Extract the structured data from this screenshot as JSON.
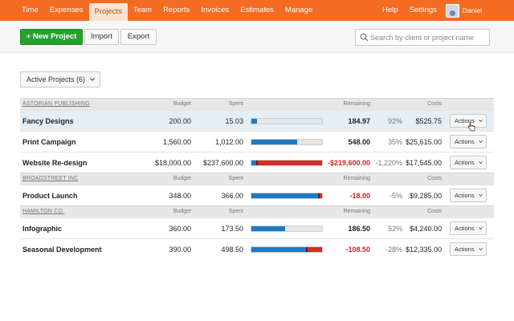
{
  "nav": {
    "items": [
      "Time",
      "Expenses",
      "Projects",
      "Team",
      "Reports",
      "Invoices",
      "Estimates",
      "Manage"
    ],
    "active": "Projects",
    "help": "Help",
    "settings": "Settings",
    "user": "Daniel"
  },
  "toolbar": {
    "new_project": "+ New Project",
    "import": "Import",
    "export": "Export",
    "search_placeholder": "Search by client or project name"
  },
  "filter": {
    "label": "Active Projects (6)"
  },
  "columns": {
    "budget": "Budget",
    "spent": "Spent",
    "remaining": "Remaining",
    "costs": "Costs"
  },
  "actions_label": "Actions",
  "colors": {
    "nav": "#f36c21",
    "new_button": "#26a12d",
    "bar_blue": "#1e7ac4",
    "bar_red": "#d92b25",
    "negative": "#d0201c"
  },
  "groups": [
    {
      "client": "ASTORIAN PUBLISHING",
      "projects": [
        {
          "name": "Fancy Designs",
          "budget": "200.00",
          "spent": "15.03",
          "remaining": "184.97",
          "percent": "92%",
          "costs": "$525.75",
          "progress": 0.075,
          "negative": false,
          "highlighted": true
        },
        {
          "name": "Print Campaign",
          "budget": "1,560.00",
          "spent": "1,012.00",
          "remaining": "548.00",
          "percent": "35%",
          "costs": "$25,615.00",
          "progress": 0.65,
          "negative": false,
          "highlighted": false
        },
        {
          "name": "Website Re-design",
          "budget": "$18,000.00",
          "spent": "$237,600.00",
          "remaining": "-$219,600.00",
          "percent": "-1,220%",
          "costs": "$17,545.00",
          "progress": 13.2,
          "negative": true,
          "highlighted": false
        }
      ]
    },
    {
      "client": "BROADSTREET INC",
      "projects": [
        {
          "name": "Product Launch",
          "budget": "348.00",
          "spent": "366.00",
          "remaining": "-18.00",
          "percent": "-5%",
          "costs": "$9,285.00",
          "progress": 1.05,
          "negative": true,
          "highlighted": false
        }
      ]
    },
    {
      "client": "HAMILTON CO.",
      "projects": [
        {
          "name": "Infographic",
          "budget": "360.00",
          "spent": "173.50",
          "remaining": "186.50",
          "percent": "52%",
          "costs": "$4,240.00",
          "progress": 0.48,
          "negative": false,
          "highlighted": false
        },
        {
          "name": "Seasonal Development",
          "budget": "390.00",
          "spent": "498.50",
          "remaining": "-108.50",
          "percent": "-28%",
          "costs": "$12,335.00",
          "progress": 1.28,
          "negative": true,
          "highlighted": false
        }
      ]
    }
  ]
}
